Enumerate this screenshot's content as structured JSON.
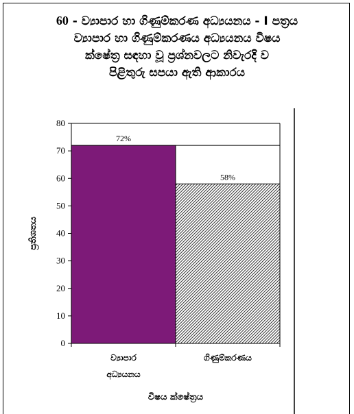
{
  "header": {
    "number": "60",
    "line1_rest": " - ව්‍යාපාර හා ගිණුම්කරණ අධ්‍යයනය - I  පත්‍රය",
    "line2": "ව්‍යාපාර හා ගිණුම්කරණය  අධ්‍යයනය  විෂය",
    "line3": "ක්ෂේත්‍ර සඳහා වූ  ප්‍රශ්නවලට නිවැරදි ව",
    "line4": "පිළිතුරු සපයා ඇති ආකාරය"
  },
  "chart_data": {
    "type": "bar",
    "categories": [
      [
        "ව්‍යාපාර",
        "අධ්‍යයනය"
      ],
      [
        "ගිණුම්කරණය"
      ]
    ],
    "values": [
      72,
      58
    ],
    "data_labels": [
      "72%",
      "58%"
    ],
    "bar_colors": [
      "#7d1a78",
      "pattern:diagonal-hatch"
    ],
    "ylim": [
      0,
      80
    ],
    "yticks": [
      0,
      10,
      20,
      30,
      40,
      50,
      60,
      70,
      80
    ],
    "ylabel": "ප්‍රතිශතය",
    "xlabel": "විෂය ක්ෂේත්‍රය",
    "grid": false
  }
}
